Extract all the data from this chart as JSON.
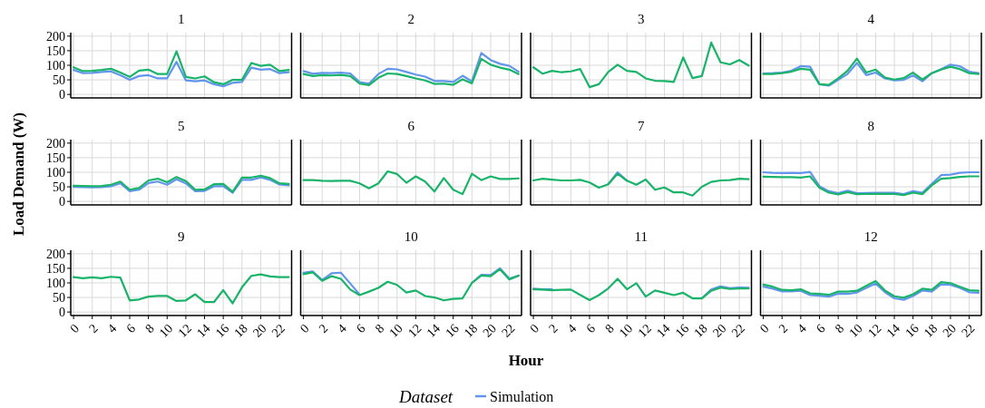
{
  "chart_data": [
    {
      "type": "line",
      "title": "1",
      "legend_title": "Dataset",
      "legend": "bottom",
      "x": [
        0,
        1,
        2,
        3,
        4,
        5,
        6,
        7,
        8,
        9,
        10,
        11,
        12,
        13,
        14,
        15,
        16,
        17,
        18,
        19,
        20,
        21,
        22,
        23
      ],
      "xlim": [
        -0.3,
        23.3
      ],
      "xticks": [
        0,
        2,
        4,
        6,
        8,
        10,
        12,
        14,
        16,
        18,
        20,
        22
      ],
      "ylim": [
        -12,
        212
      ],
      "yticks": [
        0,
        50,
        100,
        150,
        200
      ],
      "grid": true,
      "tick_labels": "y",
      "series": [
        {
          "name": "Simulation",
          "color": "#6495ed",
          "values": [
            84,
            73,
            74,
            77,
            79,
            66,
            50,
            63,
            66,
            55,
            55,
            112,
            48,
            45,
            48,
            35,
            28,
            40,
            43,
            92,
            85,
            87,
            73,
            76
          ]
        },
        {
          "color": "#19b46a",
          "values": [
            93,
            80,
            81,
            84,
            88,
            75,
            60,
            82,
            85,
            70,
            70,
            148,
            60,
            55,
            62,
            42,
            35,
            50,
            50,
            108,
            98,
            102,
            80,
            84
          ]
        }
      ]
    },
    {
      "type": "line",
      "title": "2",
      "x": [
        0,
        1,
        2,
        3,
        4,
        5,
        6,
        7,
        8,
        9,
        10,
        11,
        12,
        13,
        14,
        15,
        16,
        17,
        18,
        19,
        20,
        21,
        22,
        23
      ],
      "xlim": [
        -0.3,
        23.3
      ],
      "xticks": [
        0,
        2,
        4,
        6,
        8,
        10,
        12,
        14,
        16,
        18,
        20,
        22
      ],
      "ylim": [
        -12,
        212
      ],
      "yticks": [
        0,
        50,
        100,
        150,
        200
      ],
      "grid": true,
      "tick_labels": false,
      "series": [
        {
          "color": "#6495ed",
          "values": [
            80,
            71,
            74,
            73,
            75,
            72,
            42,
            37,
            70,
            88,
            86,
            77,
            68,
            61,
            46,
            46,
            43,
            64,
            45,
            142,
            118,
            105,
            98,
            78
          ]
        },
        {
          "color": "#19b46a",
          "values": [
            70,
            63,
            66,
            65,
            67,
            63,
            37,
            32,
            57,
            72,
            70,
            63,
            55,
            48,
            36,
            37,
            33,
            52,
            38,
            122,
            102,
            92,
            85,
            70
          ]
        }
      ]
    },
    {
      "type": "line",
      "title": "3",
      "x": [
        0,
        1,
        2,
        3,
        4,
        5,
        6,
        7,
        8,
        9,
        10,
        11,
        12,
        13,
        14,
        15,
        16,
        17,
        18,
        19,
        20,
        21,
        22,
        23
      ],
      "xlim": [
        -0.3,
        23.3
      ],
      "xticks": [
        0,
        2,
        4,
        6,
        8,
        10,
        12,
        14,
        16,
        18,
        20,
        22
      ],
      "ylim": [
        -12,
        212
      ],
      "yticks": [
        0,
        50,
        100,
        150,
        200
      ],
      "grid": true,
      "tick_labels": false,
      "series": [
        {
          "color": "#19b46a",
          "values": [
            93,
            71,
            81,
            76,
            79,
            87,
            25,
            35,
            77,
            102,
            81,
            77,
            55,
            47,
            46,
            43,
            127,
            56,
            63,
            178,
            110,
            103,
            118,
            99
          ]
        }
      ]
    },
    {
      "type": "line",
      "title": "4",
      "x": [
        0,
        1,
        2,
        3,
        4,
        5,
        6,
        7,
        8,
        9,
        10,
        11,
        12,
        13,
        14,
        15,
        16,
        17,
        18,
        19,
        20,
        21,
        22,
        23
      ],
      "xlim": [
        -0.3,
        23.3
      ],
      "xticks": [
        0,
        2,
        4,
        6,
        8,
        10,
        12,
        14,
        16,
        18,
        20,
        22
      ],
      "ylim": [
        -12,
        212
      ],
      "yticks": [
        0,
        50,
        100,
        150,
        200
      ],
      "grid": true,
      "tick_labels": false,
      "series": [
        {
          "color": "#6495ed",
          "values": [
            72,
            73,
            75,
            81,
            97,
            95,
            35,
            30,
            50,
            70,
            108,
            66,
            75,
            55,
            48,
            50,
            65,
            45,
            73,
            87,
            102,
            97,
            78,
            73
          ]
        },
        {
          "color": "#19b46a",
          "values": [
            70,
            70,
            73,
            78,
            88,
            85,
            35,
            33,
            55,
            81,
            123,
            75,
            85,
            58,
            51,
            56,
            75,
            51,
            73,
            85,
            95,
            87,
            73,
            70
          ]
        }
      ]
    },
    {
      "type": "line",
      "title": "5",
      "ylabel": "Load Demand (W)",
      "x": [
        0,
        1,
        2,
        3,
        4,
        5,
        6,
        7,
        8,
        9,
        10,
        11,
        12,
        13,
        14,
        15,
        16,
        17,
        18,
        19,
        20,
        21,
        22,
        23
      ],
      "xlim": [
        -0.3,
        23.3
      ],
      "xticks": [
        0,
        2,
        4,
        6,
        8,
        10,
        12,
        14,
        16,
        18,
        20,
        22
      ],
      "ylim": [
        -12,
        212
      ],
      "yticks": [
        0,
        50,
        100,
        150,
        200
      ],
      "grid": true,
      "tick_labels": "y",
      "series": [
        {
          "color": "#6495ed",
          "values": [
            50,
            49,
            48,
            49,
            52,
            62,
            35,
            40,
            63,
            68,
            57,
            76,
            62,
            35,
            36,
            52,
            52,
            30,
            74,
            74,
            82,
            74,
            58,
            55
          ]
        },
        {
          "color": "#19b46a",
          "values": [
            54,
            53,
            52,
            53,
            57,
            68,
            40,
            46,
            72,
            78,
            66,
            84,
            70,
            40,
            41,
            59,
            60,
            33,
            82,
            82,
            88,
            80,
            62,
            60
          ]
        }
      ]
    },
    {
      "type": "line",
      "title": "6",
      "x": [
        0,
        1,
        2,
        3,
        4,
        5,
        6,
        7,
        8,
        9,
        10,
        11,
        12,
        13,
        14,
        15,
        16,
        17,
        18,
        19,
        20,
        21,
        22,
        23
      ],
      "xlim": [
        -0.3,
        23.3
      ],
      "xticks": [
        0,
        2,
        4,
        6,
        8,
        10,
        12,
        14,
        16,
        18,
        20,
        22
      ],
      "ylim": [
        -12,
        212
      ],
      "yticks": [
        0,
        50,
        100,
        150,
        200
      ],
      "grid": true,
      "tick_labels": false,
      "series": [
        {
          "color": "#19b46a",
          "values": [
            73,
            73,
            71,
            70,
            71,
            71,
            62,
            45,
            62,
            103,
            94,
            64,
            86,
            68,
            34,
            80,
            40,
            25,
            95,
            73,
            86,
            77,
            77,
            79
          ]
        }
      ]
    },
    {
      "type": "line",
      "title": "7",
      "x": [
        0,
        1,
        2,
        3,
        4,
        5,
        6,
        7,
        8,
        9,
        10,
        11,
        12,
        13,
        14,
        15,
        16,
        17,
        18,
        19,
        20,
        21,
        22,
        23
      ],
      "xlim": [
        -0.3,
        23.3
      ],
      "xticks": [
        0,
        2,
        4,
        6,
        8,
        10,
        12,
        14,
        16,
        18,
        20,
        22
      ],
      "ylim": [
        -12,
        212
      ],
      "yticks": [
        0,
        50,
        100,
        150,
        200
      ],
      "grid": true,
      "tick_labels": false,
      "series": [
        {
          "color": "#6495ed",
          "values": [
            null,
            null,
            null,
            null,
            null,
            null,
            null,
            null,
            60,
            100,
            71,
            null,
            null,
            null,
            null,
            null,
            null,
            null,
            null,
            null,
            null,
            null,
            null,
            null
          ]
        },
        {
          "color": "#19b46a",
          "values": [
            72,
            78,
            75,
            72,
            72,
            74,
            65,
            47,
            59,
            95,
            71,
            57,
            75,
            40,
            48,
            31,
            31,
            20,
            50,
            67,
            72,
            73,
            78,
            76
          ]
        }
      ]
    },
    {
      "type": "line",
      "title": "8",
      "x": [
        0,
        1,
        2,
        3,
        4,
        5,
        6,
        7,
        8,
        9,
        10,
        11,
        12,
        13,
        14,
        15,
        16,
        17,
        18,
        19,
        20,
        21,
        22,
        23
      ],
      "xlim": [
        -0.3,
        23.3
      ],
      "xticks": [
        0,
        2,
        4,
        6,
        8,
        10,
        12,
        14,
        16,
        18,
        20,
        22
      ],
      "ylim": [
        -12,
        212
      ],
      "yticks": [
        0,
        50,
        100,
        150,
        200
      ],
      "grid": true,
      "tick_labels": false,
      "series": [
        {
          "color": "#6495ed",
          "values": [
            100,
            98,
            97,
            98,
            97,
            101,
            52,
            35,
            28,
            37,
            28,
            29,
            30,
            30,
            30,
            25,
            35,
            30,
            60,
            90,
            92,
            98,
            100,
            100
          ]
        },
        {
          "color": "#19b46a",
          "values": [
            85,
            84,
            83,
            83,
            82,
            86,
            47,
            30,
            24,
            32,
            25,
            26,
            26,
            26,
            26,
            22,
            30,
            25,
            55,
            78,
            80,
            84,
            86,
            86
          ]
        }
      ]
    },
    {
      "type": "line",
      "title": "9",
      "x": [
        0,
        1,
        2,
        3,
        4,
        5,
        6,
        7,
        8,
        9,
        10,
        11,
        12,
        13,
        14,
        15,
        16,
        17,
        18,
        19,
        20,
        21,
        22,
        23
      ],
      "xlim": [
        -0.3,
        23.3
      ],
      "xticks": [
        0,
        2,
        4,
        6,
        8,
        10,
        12,
        14,
        16,
        18,
        20,
        22
      ],
      "ylim": [
        -12,
        212
      ],
      "yticks": [
        0,
        50,
        100,
        150,
        200
      ],
      "grid": true,
      "series": [
        {
          "color": "#19b46a",
          "values": [
            120,
            116,
            119,
            116,
            121,
            118,
            40,
            43,
            53,
            55,
            55,
            38,
            40,
            61,
            34,
            34,
            75,
            30,
            85,
            124,
            129,
            122,
            120,
            120
          ]
        }
      ]
    },
    {
      "type": "line",
      "title": "10",
      "xlabel": "Hour",
      "x": [
        0,
        1,
        2,
        3,
        4,
        5,
        6,
        7,
        8,
        9,
        10,
        11,
        12,
        13,
        14,
        15,
        16,
        17,
        18,
        19,
        20,
        21,
        22,
        23
      ],
      "xlim": [
        -0.3,
        23.3
      ],
      "xticks": [
        0,
        2,
        4,
        6,
        8,
        10,
        12,
        14,
        16,
        18,
        20,
        22
      ],
      "ylim": [
        -12,
        212
      ],
      "yticks": [
        0,
        50,
        100,
        150,
        200
      ],
      "grid": true,
      "tick_labels": "x",
      "series": [
        {
          "color": "#6495ed",
          "values": [
            135,
            139,
            110,
            133,
            135,
            98,
            60,
            null,
            null,
            null,
            null,
            null,
            null,
            null,
            null,
            null,
            null,
            null,
            100,
            128,
            127,
            150,
            115,
            125
          ]
        },
        {
          "color": "#19b46a",
          "values": [
            130,
            136,
            107,
            123,
            114,
            77,
            58,
            70,
            83,
            104,
            93,
            67,
            74,
            55,
            50,
            40,
            45,
            47,
            100,
            125,
            123,
            147,
            112,
            125
          ]
        }
      ]
    },
    {
      "type": "line",
      "title": "11",
      "x": [
        0,
        1,
        2,
        3,
        4,
        5,
        6,
        7,
        8,
        9,
        10,
        11,
        12,
        13,
        14,
        15,
        16,
        17,
        18,
        19,
        20,
        21,
        22,
        23
      ],
      "xlim": [
        -0.3,
        23.3
      ],
      "xticks": [
        0,
        2,
        4,
        6,
        8,
        10,
        12,
        14,
        16,
        18,
        20,
        22
      ],
      "ylim": [
        -12,
        212
      ],
      "yticks": [
        0,
        50,
        100,
        150,
        200
      ],
      "grid": true,
      "tick_labels": "x",
      "series": [
        {
          "color": "#6495ed",
          "values": [
            80,
            78,
            78,
            null,
            null,
            null,
            null,
            null,
            null,
            null,
            null,
            null,
            null,
            null,
            null,
            null,
            null,
            null,
            47,
            77,
            88,
            82,
            84,
            83
          ]
        },
        {
          "color": "#19b46a",
          "values": [
            78,
            77,
            75,
            76,
            77,
            59,
            41,
            58,
            81,
            114,
            78,
            99,
            53,
            74,
            66,
            58,
            66,
            47,
            47,
            73,
            84,
            79,
            81,
            81
          ]
        }
      ]
    },
    {
      "type": "line",
      "title": "12",
      "x": [
        0,
        1,
        2,
        3,
        4,
        5,
        6,
        7,
        8,
        9,
        10,
        11,
        12,
        13,
        14,
        15,
        16,
        17,
        18,
        19,
        20,
        21,
        22,
        23
      ],
      "xlim": [
        -0.3,
        23.3
      ],
      "xticks": [
        0,
        2,
        4,
        6,
        8,
        10,
        12,
        14,
        16,
        18,
        20,
        22
      ],
      "ylim": [
        -12,
        212
      ],
      "yticks": [
        0,
        50,
        100,
        150,
        200
      ],
      "grid": true,
      "tick_labels": "x",
      "series": [
        {
          "color": "#6495ed",
          "values": [
            87,
            80,
            71,
            71,
            73,
            58,
            56,
            53,
            63,
            62,
            67,
            83,
            98,
            68,
            47,
            42,
            55,
            74,
            70,
            95,
            93,
            83,
            68,
            66
          ]
        },
        {
          "color": "#19b46a",
          "values": [
            94,
            87,
            76,
            75,
            78,
            64,
            62,
            59,
            70,
            70,
            73,
            90,
            106,
            74,
            54,
            49,
            61,
            80,
            76,
            103,
            99,
            87,
            75,
            73
          ]
        }
      ]
    }
  ]
}
